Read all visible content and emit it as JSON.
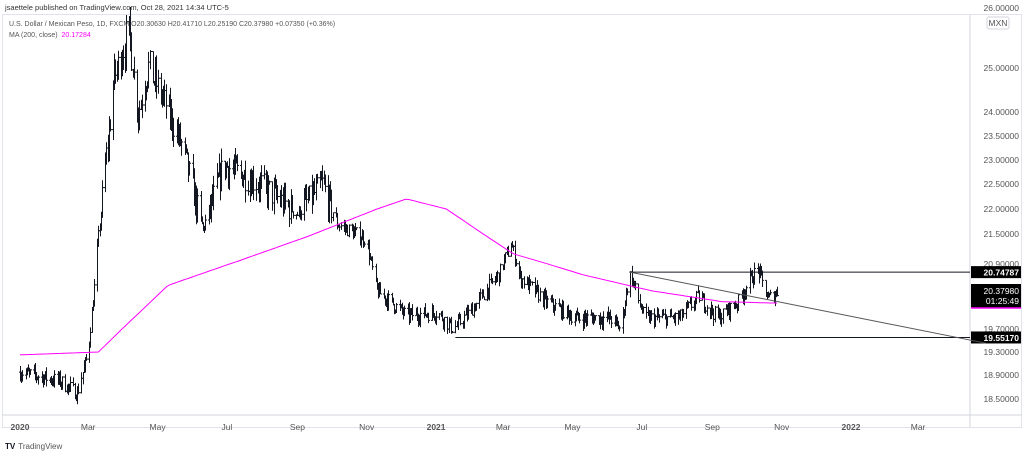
{
  "header": {
    "publisher": "jsaettele published on TradingView.com, Oct 28, 2021 14:34 UTC-5",
    "symbol_line": "U.S. Dollar / Mexican Peso, 1D, FXCM  O20.30630  H20.41710  L20.25190  C20.37980  +0.07350 (+0.36%)",
    "ma_label": "MA (200, close)",
    "ma_value": "20.17284"
  },
  "footer": {
    "logo": "TradingView"
  },
  "chart_data": {
    "type": "ohlc",
    "title": "U.S. Dollar / Mexican Peso, 1D, FXCM",
    "currency_badge": "MXN",
    "y_scale": "log",
    "ylim": [
      18.2,
      26.2
    ],
    "y_ticks": [
      "26.00000",
      "25.00000",
      "24.00000",
      "23.50000",
      "23.00000",
      "22.50000",
      "22.00000",
      "21.50000",
      "20.90000",
      "19.70000",
      "19.30000",
      "18.90000",
      "18.50000"
    ],
    "x_ticks": [
      "2020",
      "Mar",
      "May",
      "Jul",
      "Sep",
      "Nov",
      "2021",
      "Mar",
      "May",
      "Jul",
      "Sep",
      "Nov",
      "2022",
      "Mar"
    ],
    "price_path": [
      [
        "2020-01-01",
        18.95
      ],
      [
        "2020-02-05",
        18.8
      ],
      [
        "2020-02-20",
        18.6
      ],
      [
        "2020-03-01",
        19.3
      ],
      [
        "2020-03-13",
        22.2
      ],
      [
        "2020-03-24",
        24.8
      ],
      [
        "2020-04-06",
        25.7
      ],
      [
        "2020-04-14",
        24.0
      ],
      [
        "2020-04-23",
        25.0
      ],
      [
        "2020-05-06",
        24.3
      ],
      [
        "2020-05-24",
        23.2
      ],
      [
        "2020-06-05",
        22.0
      ],
      [
        "2020-06-10",
        21.6
      ],
      [
        "2020-06-28",
        22.9
      ],
      [
        "2020-07-30",
        22.5
      ],
      [
        "2020-09-01",
        21.9
      ],
      [
        "2020-09-23",
        22.5
      ],
      [
        "2020-10-06",
        21.7
      ],
      [
        "2020-10-31",
        21.4
      ],
      [
        "2020-11-10",
        20.4
      ],
      [
        "2020-12-06",
        19.95
      ],
      [
        "2021-01-02",
        20.0
      ],
      [
        "2021-01-16",
        19.7
      ],
      [
        "2021-01-30",
        20.0
      ],
      [
        "2021-02-25",
        20.7
      ],
      [
        "2021-03-08",
        21.3
      ],
      [
        "2021-03-16",
        20.65
      ],
      [
        "2021-04-08",
        20.2
      ],
      [
        "2021-05-04",
        19.9
      ],
      [
        "2021-06-03",
        19.9
      ],
      [
        "2021-06-12",
        19.7
      ],
      [
        "2021-06-20",
        20.75
      ],
      [
        "2021-07-03",
        19.9
      ],
      [
        "2021-08-03",
        19.9
      ],
      [
        "2021-08-20",
        20.3
      ],
      [
        "2021-09-06",
        19.9
      ],
      [
        "2021-09-24",
        20.2
      ],
      [
        "2021-10-04",
        20.6
      ],
      [
        "2021-10-11",
        20.8
      ],
      [
        "2021-10-20",
        20.25
      ],
      [
        "2021-10-28",
        20.3798
      ]
    ],
    "ma200_path": [
      [
        "2020-01-01",
        19.25
      ],
      [
        "2020-03-10",
        19.3
      ],
      [
        "2020-05-10",
        20.5
      ],
      [
        "2020-07-10",
        20.95
      ],
      [
        "2020-09-10",
        21.45
      ],
      [
        "2020-11-10",
        22.0
      ],
      [
        "2020-12-06",
        22.2
      ],
      [
        "2021-01-10",
        22.0
      ],
      [
        "2021-03-10",
        21.1
      ],
      [
        "2021-05-10",
        20.7
      ],
      [
        "2021-07-10",
        20.4
      ],
      [
        "2021-09-10",
        20.2
      ],
      [
        "2021-10-28",
        20.17284
      ]
    ],
    "series_colors": {
      "bars": "#131722",
      "ma": "#ff00ff"
    },
    "levels": [
      {
        "label": "20.74787",
        "value": 20.74787,
        "from": "2021-06-20"
      },
      {
        "label": "19.55170",
        "value": 19.5517,
        "from": "2021-01-18"
      }
    ],
    "trendline": {
      "from": [
        "2021-06-20",
        20.75
      ],
      "to": [
        "2022-04-30",
        19.45
      ]
    },
    "last_price": {
      "label": "20.37980",
      "countdown": "01:25:49"
    }
  }
}
